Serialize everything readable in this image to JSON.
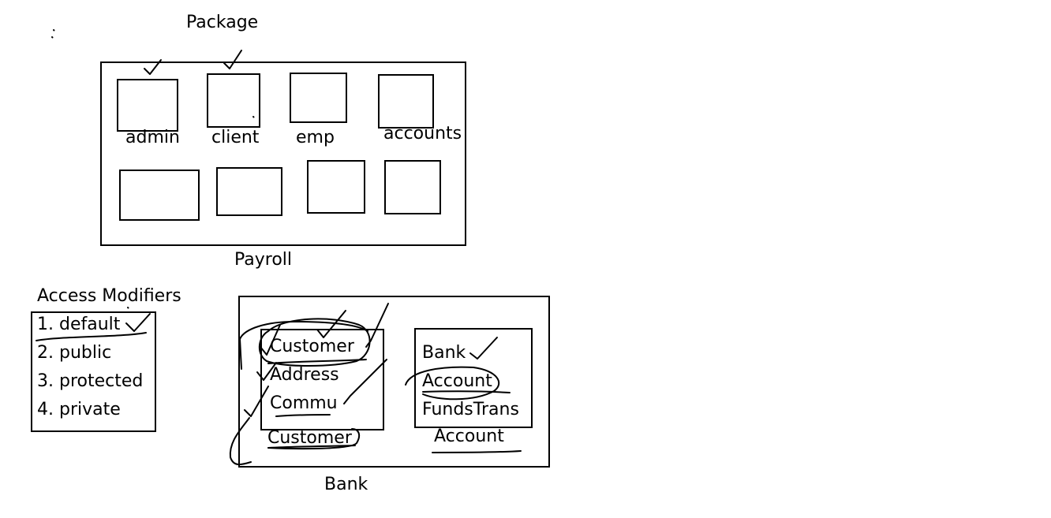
{
  "package_section": {
    "title": "Package",
    "container_label": "Payroll",
    "packages": [
      "admin",
      "client",
      "emp",
      "accounts"
    ],
    "checked": [
      "admin",
      "client"
    ]
  },
  "access_modifiers": {
    "title": "Access Modifiers",
    "items": [
      "1. default",
      "2. public",
      "3. protected",
      "4. private"
    ],
    "checked": "1. default"
  },
  "bank_section": {
    "container_label": "Bank",
    "customer_box": {
      "classes": [
        "Customer",
        "Address",
        "Commu"
      ],
      "label": "Customer"
    },
    "account_box": {
      "classes": [
        "Bank",
        "Account",
        "FundsTrans"
      ],
      "label": "Account"
    }
  }
}
